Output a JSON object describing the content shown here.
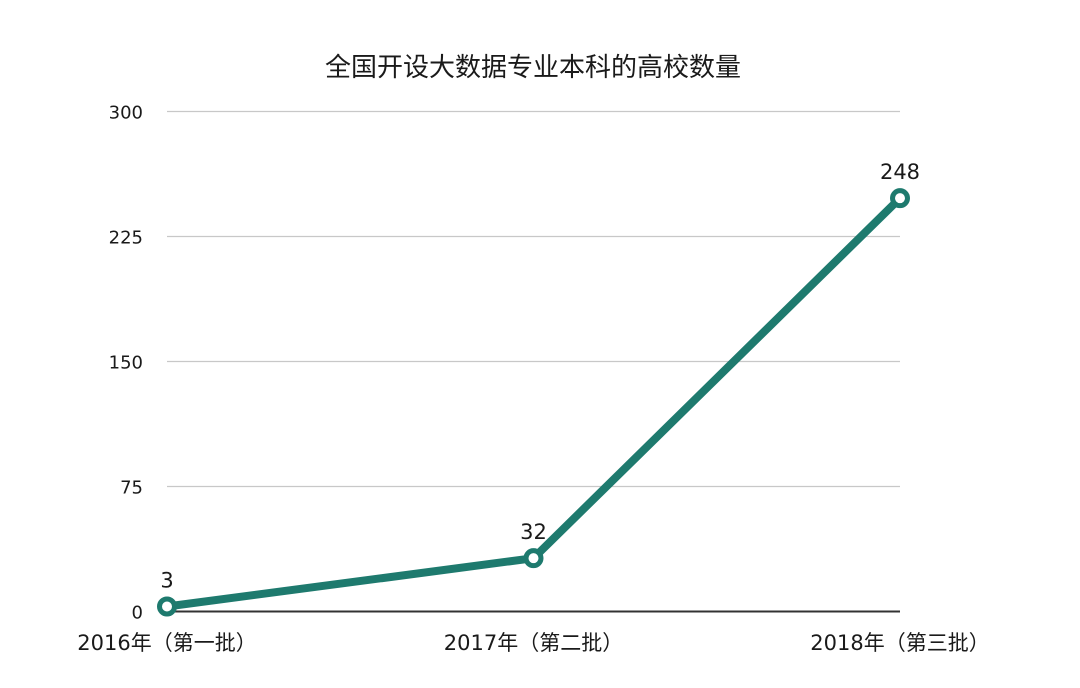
{
  "chart_data": {
    "type": "line",
    "title": "全国开设大数据专业本科的高校数量",
    "categories": [
      "2016年（第一批）",
      "2017年（第二批）",
      "2018年（第三批）"
    ],
    "series": [
      {
        "values": [
          3,
          32,
          248
        ],
        "color": "#1e7a6e"
      }
    ],
    "ylim": [
      0,
      300
    ],
    "yticks": [
      0,
      75,
      150,
      225,
      300
    ],
    "ytick_labels": [
      "0",
      "75",
      "150",
      "225",
      "300"
    ],
    "data_labels": [
      "3",
      "32",
      "248"
    ],
    "grid": true,
    "gridline_color": "#c8c8c8",
    "axis_color": "#333333"
  }
}
